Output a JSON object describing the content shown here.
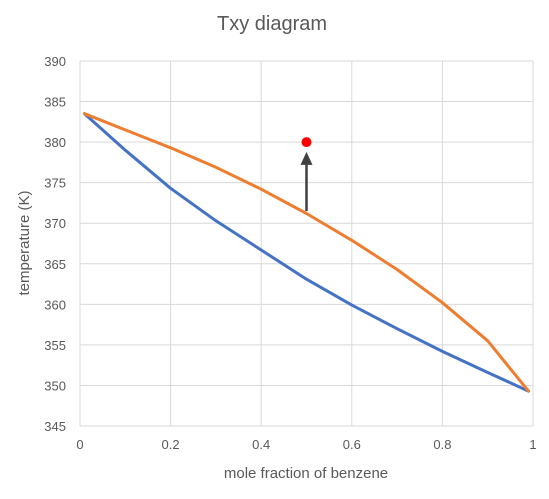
{
  "chart_data": {
    "type": "line",
    "title": "Txy diagram",
    "xlabel": "mole fraction of benzene",
    "ylabel": "temperature (K)",
    "xlim": [
      0,
      1
    ],
    "ylim": [
      345,
      390
    ],
    "x_ticks": [
      0,
      0.2,
      0.4,
      0.6,
      0.8,
      1
    ],
    "x_tick_labels": [
      "0",
      "0.2",
      "0.4",
      "0.6",
      "0.8",
      "1"
    ],
    "y_ticks": [
      345,
      350,
      355,
      360,
      365,
      370,
      375,
      380,
      385,
      390
    ],
    "y_tick_labels": [
      "345",
      "350",
      "355",
      "360",
      "365",
      "370",
      "375",
      "380",
      "385",
      "390"
    ],
    "grid": true,
    "legend": "none",
    "series": [
      {
        "color": "#4472C4",
        "points": [
          [
            0.01,
            383.5
          ],
          [
            0.1,
            379.0
          ],
          [
            0.2,
            374.3
          ],
          [
            0.3,
            370.3
          ],
          [
            0.4,
            366.7
          ],
          [
            0.5,
            363.1
          ],
          [
            0.6,
            359.9
          ],
          [
            0.7,
            357.0
          ],
          [
            0.8,
            354.2
          ],
          [
            0.9,
            351.6
          ],
          [
            0.99,
            349.3
          ]
        ]
      },
      {
        "color": "#ED7D31",
        "points": [
          [
            0.01,
            383.5
          ],
          [
            0.1,
            381.5
          ],
          [
            0.2,
            379.3
          ],
          [
            0.3,
            376.9
          ],
          [
            0.4,
            374.2
          ],
          [
            0.5,
            371.2
          ],
          [
            0.6,
            367.9
          ],
          [
            0.7,
            364.3
          ],
          [
            0.8,
            360.2
          ],
          [
            0.9,
            355.5
          ],
          [
            0.99,
            349.3
          ]
        ]
      }
    ],
    "marker": {
      "x": 0.5,
      "y": 380,
      "color": "#FF0000"
    },
    "arrow": {
      "x": 0.5,
      "from_y": 371.5,
      "to_y": 378.8,
      "color": "#404040"
    }
  }
}
